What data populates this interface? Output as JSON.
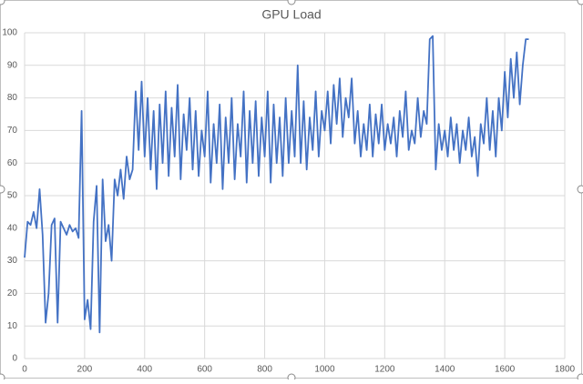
{
  "chart_data": {
    "type": "line",
    "title": "GPU Load",
    "x": [
      0,
      10,
      20,
      30,
      40,
      50,
      60,
      70,
      80,
      90,
      100,
      110,
      120,
      130,
      140,
      150,
      160,
      170,
      180,
      190,
      200,
      210,
      220,
      230,
      240,
      250,
      260,
      270,
      280,
      290,
      300,
      310,
      320,
      330,
      340,
      350,
      360,
      370,
      380,
      390,
      400,
      410,
      420,
      430,
      440,
      450,
      460,
      470,
      480,
      490,
      500,
      510,
      520,
      530,
      540,
      550,
      560,
      570,
      580,
      590,
      600,
      610,
      620,
      630,
      640,
      650,
      660,
      670,
      680,
      690,
      700,
      710,
      720,
      730,
      740,
      750,
      760,
      770,
      780,
      790,
      800,
      810,
      820,
      830,
      840,
      850,
      860,
      870,
      880,
      890,
      900,
      910,
      920,
      930,
      940,
      950,
      960,
      970,
      980,
      990,
      1000,
      1010,
      1020,
      1030,
      1040,
      1050,
      1060,
      1070,
      1080,
      1090,
      1100,
      1110,
      1120,
      1130,
      1140,
      1150,
      1160,
      1170,
      1180,
      1190,
      1200,
      1210,
      1220,
      1230,
      1240,
      1250,
      1260,
      1270,
      1280,
      1290,
      1300,
      1310,
      1320,
      1330,
      1340,
      1350,
      1360,
      1370,
      1380,
      1390,
      1400,
      1410,
      1420,
      1430,
      1440,
      1450,
      1460,
      1470,
      1480,
      1490,
      1500,
      1510,
      1520,
      1530,
      1540,
      1550,
      1560,
      1570,
      1580,
      1590,
      1600,
      1610,
      1620,
      1630,
      1640,
      1650,
      1660,
      1670,
      1680
    ],
    "series": [
      {
        "name": "GPU Load",
        "color": "#4472c4",
        "values": [
          31,
          42,
          41,
          45,
          40,
          52,
          38,
          11,
          20,
          41,
          43,
          11,
          42,
          40,
          38,
          41,
          39,
          40,
          37,
          76,
          12,
          18,
          9,
          42,
          53,
          8,
          55,
          36,
          41,
          30,
          55,
          50,
          58,
          49,
          62,
          55,
          58,
          82,
          64,
          85,
          62,
          80,
          58,
          76,
          52,
          78,
          60,
          82,
          56,
          77,
          62,
          84,
          55,
          75,
          64,
          80,
          58,
          76,
          56,
          70,
          62,
          82,
          54,
          72,
          60,
          78,
          52,
          74,
          60,
          80,
          55,
          72,
          62,
          82,
          54,
          76,
          60,
          79,
          56,
          74,
          62,
          82,
          54,
          78,
          60,
          74,
          56,
          80,
          60,
          76,
          62,
          90,
          60,
          79,
          58,
          74,
          64,
          82,
          62,
          76,
          70,
          82,
          66,
          84,
          72,
          86,
          68,
          80,
          74,
          86,
          66,
          76,
          62,
          72,
          64,
          78,
          62,
          75,
          66,
          78,
          64,
          72,
          66,
          74,
          62,
          76,
          68,
          82,
          64,
          70,
          66,
          80,
          68,
          76,
          72,
          98,
          99,
          58,
          72,
          64,
          70,
          62,
          74,
          64,
          72,
          60,
          70,
          64,
          74,
          62,
          68,
          56,
          72,
          66,
          80,
          64,
          76,
          62,
          80,
          70,
          88,
          74,
          92,
          80,
          94,
          78,
          90,
          98,
          98
        ]
      }
    ],
    "xlim": [
      0,
      1800
    ],
    "xticks": [
      0,
      200,
      400,
      600,
      800,
      1000,
      1200,
      1400,
      1600,
      1800
    ],
    "ylim": [
      0,
      100
    ],
    "yticks": [
      0,
      10,
      20,
      30,
      40,
      50,
      60,
      70,
      80,
      90,
      100
    ],
    "grid": true
  }
}
